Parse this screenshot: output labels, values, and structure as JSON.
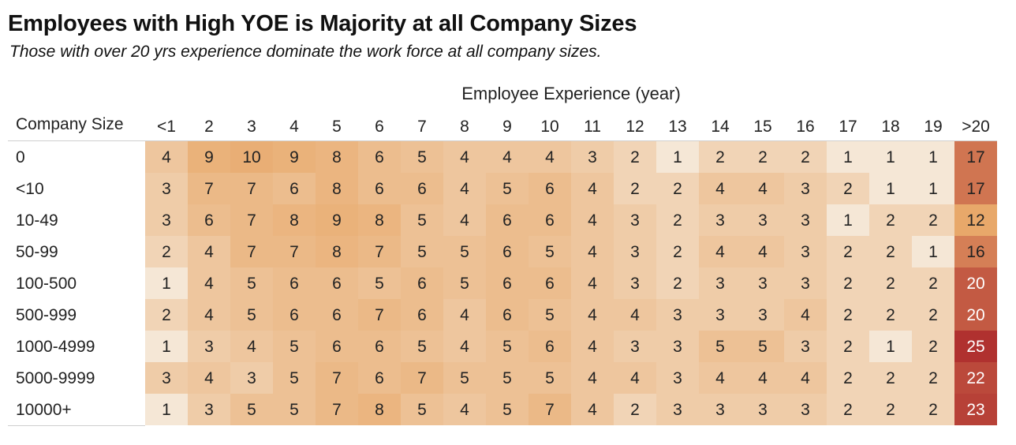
{
  "chart_data": {
    "type": "heatmap",
    "title": "Employees with High YOE is Majority at all Company Sizes",
    "subtitle": "Those with over 20 yrs experience dominate the work force at all company sizes.",
    "xlabel": "Employee Experience (year)",
    "ylabel": "Company Size",
    "x": [
      "<1",
      "2",
      "3",
      "4",
      "5",
      "6",
      "7",
      "8",
      "9",
      "10",
      "11",
      "12",
      "13",
      "14",
      "15",
      "16",
      "17",
      "18",
      "19",
      ">20"
    ],
    "y": [
      "0",
      "<10",
      "10-49",
      "50-99",
      "100-500",
      "500-999",
      "1000-4999",
      "5000-9999",
      "10000+"
    ],
    "values": [
      [
        4,
        9,
        10,
        9,
        8,
        6,
        5,
        4,
        4,
        4,
        3,
        2,
        1,
        2,
        2,
        2,
        1,
        1,
        1,
        17
      ],
      [
        3,
        7,
        7,
        6,
        8,
        6,
        6,
        4,
        5,
        6,
        4,
        2,
        2,
        4,
        4,
        3,
        2,
        1,
        1,
        17
      ],
      [
        3,
        6,
        7,
        8,
        9,
        8,
        5,
        4,
        6,
        6,
        4,
        3,
        2,
        3,
        3,
        3,
        1,
        2,
        2,
        12
      ],
      [
        2,
        4,
        7,
        7,
        8,
        7,
        5,
        5,
        6,
        5,
        4,
        3,
        2,
        4,
        4,
        3,
        2,
        2,
        1,
        16
      ],
      [
        1,
        4,
        5,
        6,
        6,
        5,
        6,
        5,
        6,
        6,
        4,
        3,
        2,
        3,
        3,
        3,
        2,
        2,
        2,
        20
      ],
      [
        2,
        4,
        5,
        6,
        6,
        7,
        6,
        4,
        6,
        5,
        4,
        4,
        3,
        3,
        3,
        4,
        2,
        2,
        2,
        20
      ],
      [
        1,
        3,
        4,
        5,
        6,
        6,
        5,
        4,
        5,
        6,
        4,
        3,
        3,
        5,
        5,
        3,
        2,
        1,
        2,
        25
      ],
      [
        3,
        4,
        3,
        5,
        7,
        6,
        7,
        5,
        5,
        5,
        4,
        4,
        3,
        4,
        4,
        4,
        2,
        2,
        2,
        22
      ],
      [
        1,
        3,
        5,
        5,
        7,
        8,
        5,
        4,
        5,
        7,
        4,
        2,
        3,
        3,
        3,
        3,
        2,
        2,
        2,
        23
      ]
    ],
    "color_scale": {
      "low": "#f5e7d6",
      "mid": "#e8a86a",
      "high": "#b0312f",
      "light_text": "#ffffff",
      "dark_text": "#222222"
    },
    "grid": false,
    "legend": "none"
  }
}
